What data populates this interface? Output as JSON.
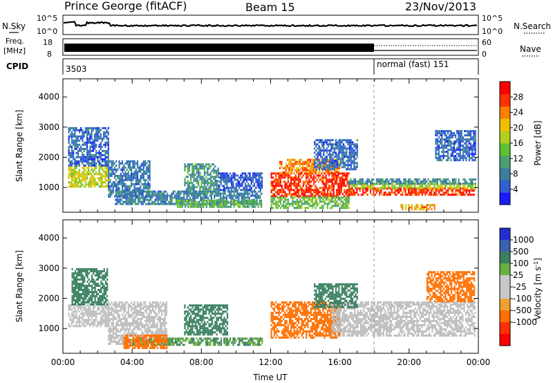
{
  "header": {
    "station": "Prince George (fitACF)",
    "beam": "Beam 15",
    "date": "23/Nov/2013"
  },
  "noise_panel": {
    "left_label": "N.Sky",
    "right_label": "N.Search",
    "ticks_left": [
      "10^5",
      "10^0"
    ],
    "ticks_right": [
      "10^5",
      "10^0"
    ]
  },
  "freq_panel": {
    "left_label_1": "Freq.",
    "left_label_2": "[MHz]",
    "right_label": "Nave",
    "ticks_left": [
      "18",
      "8"
    ],
    "ticks_right": [
      "60",
      "0"
    ]
  },
  "cpid_panel": {
    "label": "CPID",
    "segments": [
      {
        "text": "3503",
        "start_hour": 0
      },
      {
        "text": "normal (fast) 151",
        "start_hour": 18
      }
    ]
  },
  "chart_data": [
    {
      "type": "heatmap",
      "title": "",
      "ylabel": "Slant Range [km]",
      "xlabel": "",
      "xlim": [
        0,
        24
      ],
      "ylim": [
        180,
        4600
      ],
      "yticks": [
        "1000",
        "2000",
        "3000",
        "4000"
      ],
      "ytick_values": [
        1000,
        2000,
        3000,
        4000
      ],
      "colorbar": {
        "label": "Power [dB]",
        "range": [
          0,
          32
        ],
        "ticks": [
          "4",
          "8",
          "12",
          "16",
          "20",
          "24",
          "28"
        ],
        "tick_values": [
          4,
          8,
          12,
          16,
          20,
          24,
          28
        ],
        "colors": [
          "#1a1aff",
          "#2f5fd0",
          "#3a7fa0",
          "#4aa070",
          "#5fc030",
          "#b0d020",
          "#f0c000",
          "#ff8000",
          "#ff3000",
          "#ff0000"
        ]
      },
      "regions": [
        {
          "x": [
            0.3,
            2.6
          ],
          "y": [
            1050,
            1750
          ],
          "value": 18
        },
        {
          "x": [
            0.3,
            2.6
          ],
          "y": [
            1750,
            3000
          ],
          "value": 6
        },
        {
          "x": [
            2.6,
            5.0
          ],
          "y": [
            700,
            1900
          ],
          "value": 7
        },
        {
          "x": [
            3.0,
            11.5
          ],
          "y": [
            450,
            900
          ],
          "value": 8
        },
        {
          "x": [
            6.5,
            11.5
          ],
          "y": [
            350,
            600
          ],
          "value": 13
        },
        {
          "x": [
            7.0,
            9.0
          ],
          "y": [
            800,
            1800
          ],
          "value": 10
        },
        {
          "x": [
            9.0,
            11.5
          ],
          "y": [
            900,
            1500
          ],
          "value": 5
        },
        {
          "x": [
            12.0,
            16.5
          ],
          "y": [
            700,
            1500
          ],
          "value": 28
        },
        {
          "x": [
            12.5,
            16.0
          ],
          "y": [
            1500,
            1950
          ],
          "value": 24
        },
        {
          "x": [
            12.0,
            16.5
          ],
          "y": [
            350,
            700
          ],
          "value": 14
        },
        {
          "x": [
            14.5,
            17.0
          ],
          "y": [
            1600,
            2600
          ],
          "value": 6
        },
        {
          "x": [
            16.5,
            23.8
          ],
          "y": [
            750,
            1000
          ],
          "value": 28
        },
        {
          "x": [
            16.5,
            23.8
          ],
          "y": [
            1000,
            1150
          ],
          "value": 17
        },
        {
          "x": [
            16.5,
            23.8
          ],
          "y": [
            1150,
            1300
          ],
          "value": 9
        },
        {
          "x": [
            19.5,
            21.5
          ],
          "y": [
            300,
            450
          ],
          "value": 22
        },
        {
          "x": [
            21.5,
            23.8
          ],
          "y": [
            1900,
            2900
          ],
          "value": 6
        }
      ]
    },
    {
      "type": "heatmap",
      "title": "",
      "ylabel": "Slant Range [km]",
      "xlabel": "Time UT",
      "xlim": [
        0,
        24
      ],
      "ylim": [
        180,
        4600
      ],
      "yticks": [
        "1000",
        "2000",
        "3000",
        "4000"
      ],
      "ytick_values": [
        1000,
        2000,
        3000,
        4000
      ],
      "xticks": [
        "00:00",
        "04:00",
        "08:00",
        "12:00",
        "16:00",
        "20:00",
        "00:00"
      ],
      "xtick_values": [
        0,
        4,
        8,
        12,
        16,
        20,
        24
      ],
      "colorbar": {
        "label": "Velocity [m s^-1]",
        "ticks": [
          "1000",
          "500",
          "100",
          "25",
          "-25",
          "-100",
          "-500",
          "-1000"
        ],
        "colors": [
          "#2030d0",
          "#3a60b0",
          "#3a8060",
          "#6ab040",
          "#c8c8c8",
          "#c8c8c8",
          "#f0a030",
          "#ff7000",
          "#ff3000",
          "#ff0000"
        ]
      },
      "regions": [
        {
          "x": [
            0.3,
            2.6
          ],
          "y": [
            1100,
            1800
          ],
          "value": "gs"
        },
        {
          "x": [
            0.5,
            2.6
          ],
          "y": [
            1800,
            3000
          ],
          "value": 150
        },
        {
          "x": [
            2.6,
            6.0
          ],
          "y": [
            500,
            1900
          ],
          "value": "gs"
        },
        {
          "x": [
            4.0,
            11.5
          ],
          "y": [
            450,
            700
          ],
          "value": 100
        },
        {
          "x": [
            7.0,
            9.5
          ],
          "y": [
            800,
            1800
          ],
          "value": 150
        },
        {
          "x": [
            3.5,
            6.0
          ],
          "y": [
            350,
            800
          ],
          "value": -150
        },
        {
          "x": [
            12.0,
            16.0
          ],
          "y": [
            700,
            1900
          ],
          "value": -150
        },
        {
          "x": [
            15.5,
            23.8
          ],
          "y": [
            750,
            1900
          ],
          "value": "gs"
        },
        {
          "x": [
            14.5,
            17.0
          ],
          "y": [
            1700,
            2500
          ],
          "value": 150
        },
        {
          "x": [
            21.0,
            23.8
          ],
          "y": [
            1900,
            2900
          ],
          "value": -150
        }
      ]
    }
  ]
}
